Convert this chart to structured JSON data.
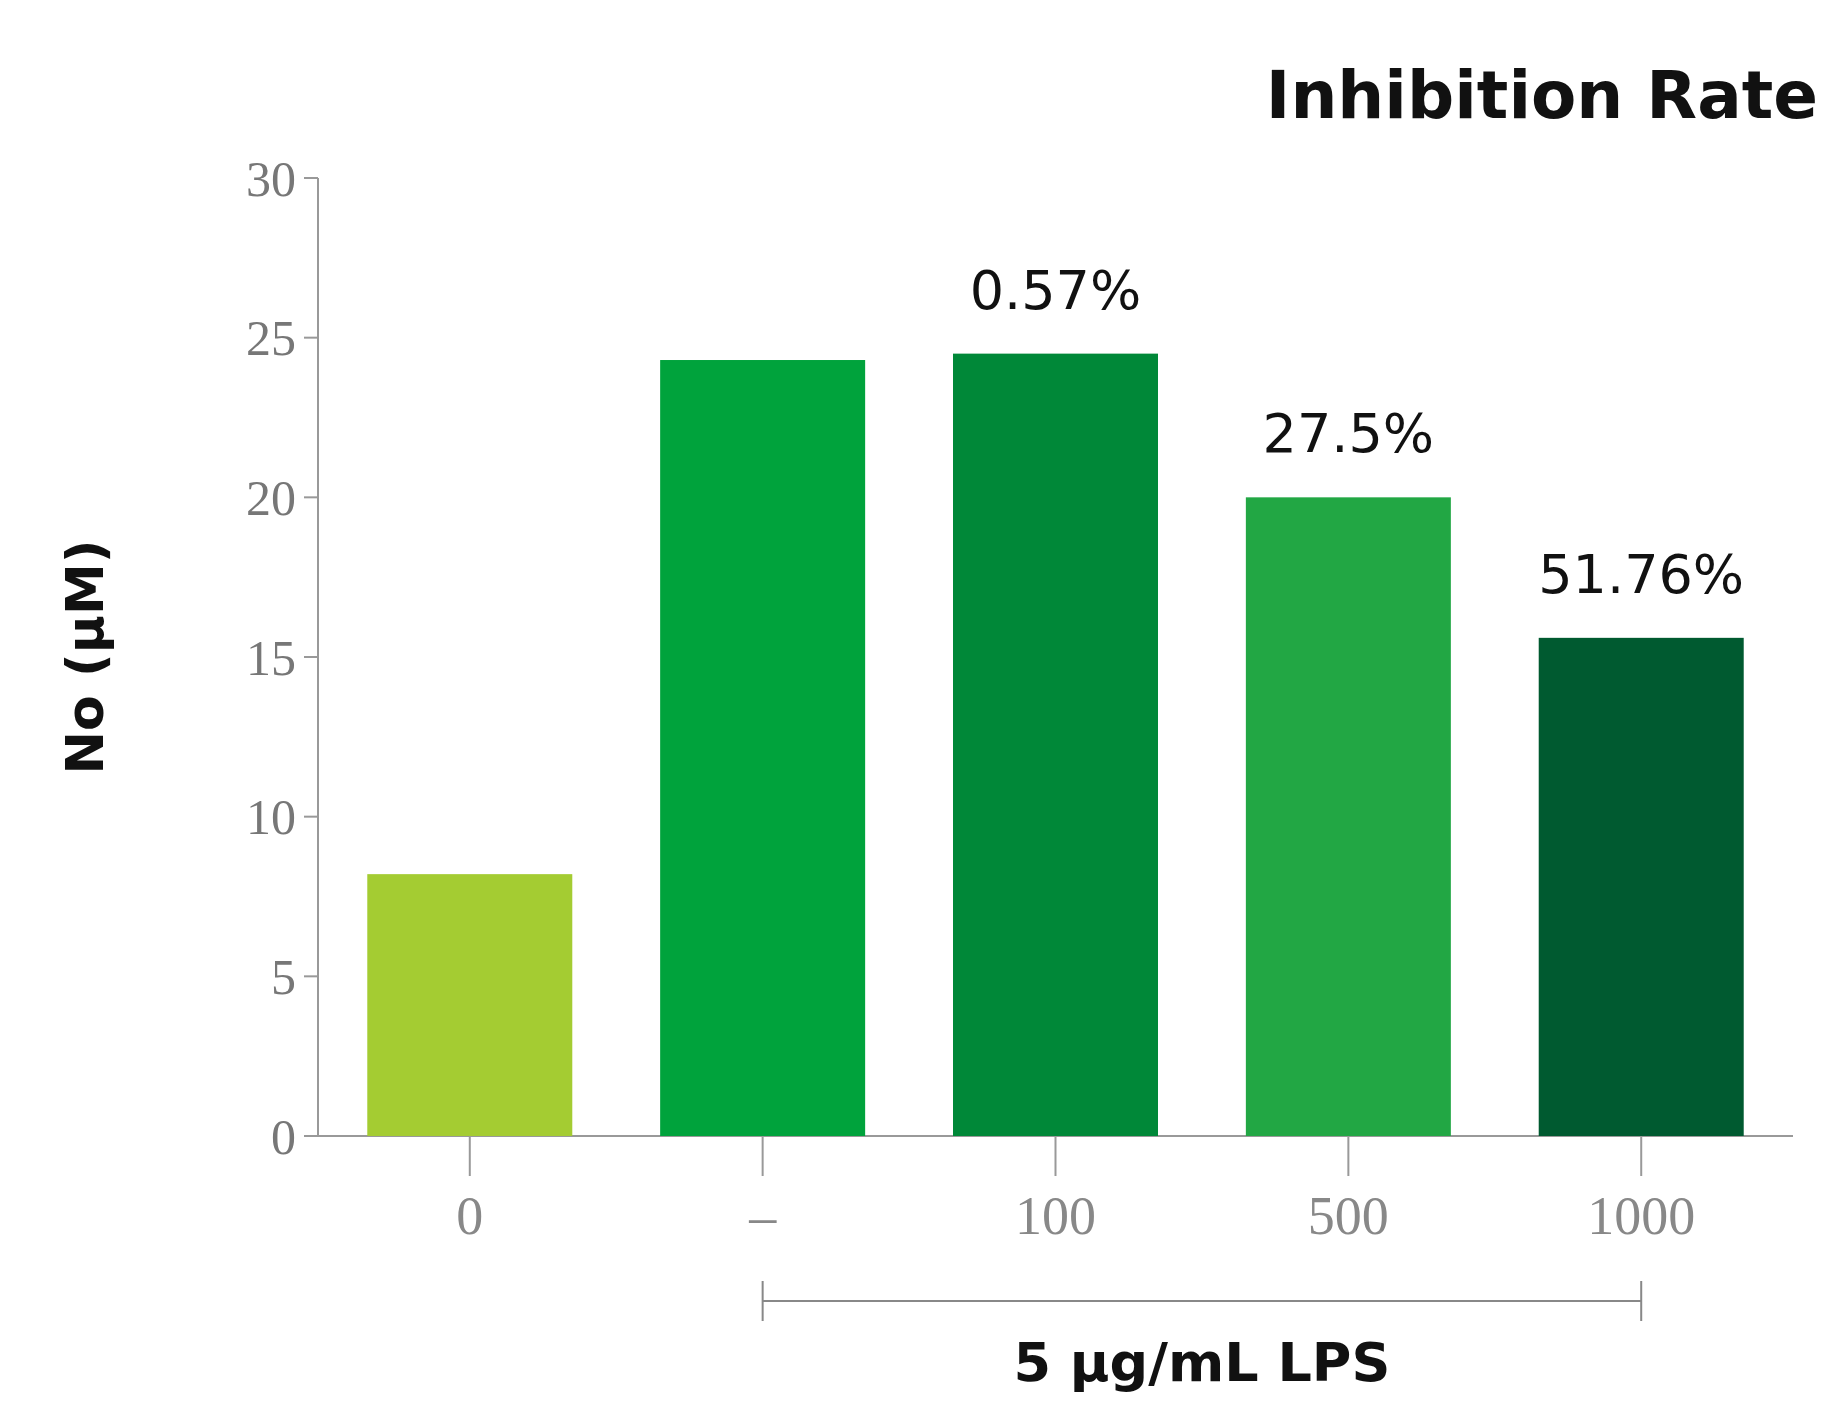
{
  "chart_data": {
    "type": "bar",
    "title": "Inhibition Rate",
    "ylabel": "No (μM)",
    "categories": [
      "0",
      "–",
      "100",
      "500",
      "1000"
    ],
    "values": [
      8.2,
      24.3,
      24.5,
      20.0,
      15.6
    ],
    "colors": [
      "#a4cc32",
      "#00a33c",
      "#008838",
      "#22a744",
      "#005a30"
    ],
    "ylim": [
      0,
      30
    ],
    "yticks": [
      0,
      5,
      10,
      15,
      20,
      25,
      30
    ],
    "annotations": [
      {
        "text": "0.57%",
        "x": "100",
        "y": 24.5
      },
      {
        "text": "27.5%",
        "x": "500",
        "y": 20.0
      },
      {
        "text": "51.76%",
        "x": "1000",
        "y": 15.6
      },
      "5 μg/mL LPS"
    ]
  }
}
